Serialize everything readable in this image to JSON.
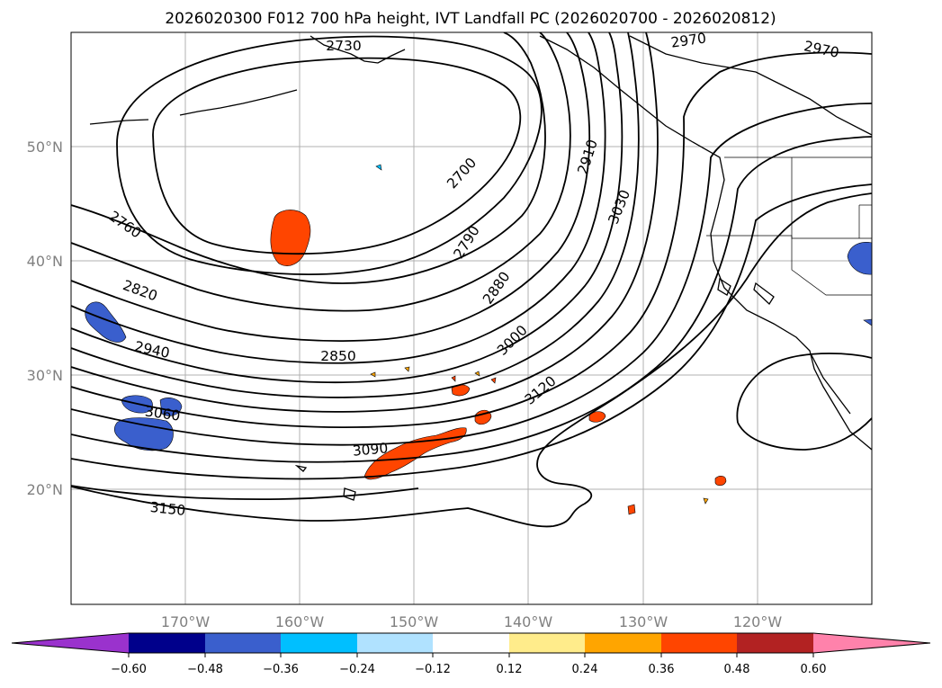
{
  "title": "2026020300 F012 700 hPa height, IVT Landfall PC (2026020700 - 2026020812)",
  "map": {
    "lat_ticks": [
      "50°N",
      "40°N",
      "30°N",
      "20°N"
    ],
    "lon_ticks": [
      "170°W",
      "160°W",
      "150°W",
      "140°W",
      "130°W",
      "120°W"
    ],
    "contour_labels": [
      "2730",
      "2970",
      "2970",
      "2700",
      "2910",
      "3030",
      "2760",
      "2790",
      "2820",
      "2880",
      "2940",
      "2850",
      "3000",
      "3060",
      "3120",
      "3090",
      "3150"
    ],
    "contour_color": "#000000",
    "grid": true
  },
  "colorbar": {
    "ticks": [
      "−0.60",
      "−0.48",
      "−0.36",
      "−0.24",
      "−0.12",
      "0.12",
      "0.24",
      "0.36",
      "0.48",
      "0.60"
    ],
    "colors": [
      "#9a32cd",
      "#00008b",
      "#3a5fcd",
      "#00bfff",
      "#b0e2ff",
      "#ffffff",
      "#ffec8b",
      "#ffa500",
      "#ff4500",
      "#b22222",
      "#ff82ab"
    ],
    "extend": "both"
  },
  "chart_data": {
    "type": "contour map",
    "title": "2026020300 F012 700 hPa height, IVT Landfall PC (2026020700 - 2026020812)",
    "x_ticks": [
      "170°W",
      "160°W",
      "150°W",
      "140°W",
      "130°W",
      "120°W"
    ],
    "y_ticks": [
      "50°N",
      "40°N",
      "30°N",
      "20°N"
    ],
    "height_contour_levels": [
      2700,
      2730,
      2760,
      2790,
      2820,
      2850,
      2880,
      2910,
      2940,
      2970,
      3000,
      3030,
      3060,
      3090,
      3120,
      3150
    ],
    "shading_levels": [
      -0.6,
      -0.48,
      -0.36,
      -0.24,
      -0.12,
      0.12,
      0.24,
      0.36,
      0.48,
      0.6
    ]
  }
}
